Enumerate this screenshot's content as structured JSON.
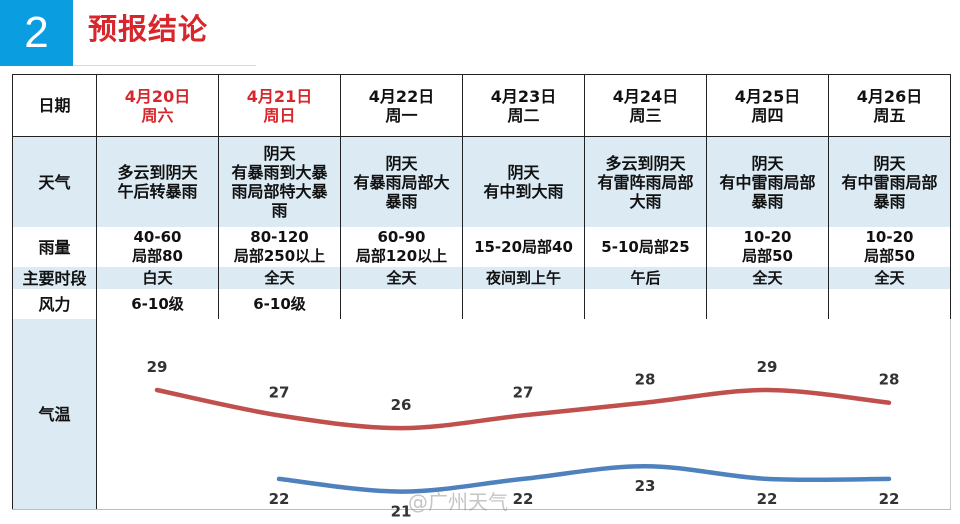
{
  "header": {
    "section_number": "2",
    "title": "预报结论"
  },
  "row_labels": {
    "date": "日期",
    "weather": "天气",
    "rain": "雨量",
    "period": "主要时段",
    "wind": "风力",
    "temp": "气温"
  },
  "days": [
    {
      "date": "4月20日",
      "weekday": "周六",
      "highlight": true,
      "weather": [
        "多云到阴天",
        "午后转暴雨"
      ],
      "rain": [
        "40-60",
        "局部80"
      ],
      "period": "白天",
      "wind": "6-10级"
    },
    {
      "date": "4月21日",
      "weekday": "周日",
      "highlight": true,
      "weather": [
        "阴天",
        "有暴雨到大暴",
        "雨局部特大暴",
        "雨"
      ],
      "rain": [
        "80-120",
        "局部250以上"
      ],
      "period": "全天",
      "wind": "6-10级"
    },
    {
      "date": "4月22日",
      "weekday": "周一",
      "highlight": false,
      "weather": [
        "阴天",
        "有暴雨局部大",
        "暴雨"
      ],
      "rain": [
        "60-90",
        "局部120以上"
      ],
      "period": "全天",
      "wind": ""
    },
    {
      "date": "4月23日",
      "weekday": "周二",
      "highlight": false,
      "weather": [
        "阴天",
        "有中到大雨"
      ],
      "rain": [
        "15-20局部40"
      ],
      "period": "夜间到上午",
      "wind": ""
    },
    {
      "date": "4月24日",
      "weekday": "周三",
      "highlight": false,
      "weather": [
        "多云到阴天",
        "有雷阵雨局部",
        "大雨"
      ],
      "rain": [
        "5-10局部25"
      ],
      "period": "午后",
      "wind": ""
    },
    {
      "date": "4月25日",
      "weekday": "周四",
      "highlight": false,
      "weather": [
        "阴天",
        "有中雷雨局部",
        "暴雨"
      ],
      "rain": [
        "10-20",
        "局部50"
      ],
      "period": "全天",
      "wind": ""
    },
    {
      "date": "4月26日",
      "weekday": "周五",
      "highlight": false,
      "weather": [
        "阴天",
        "有中雷雨局部",
        "暴雨"
      ],
      "rain": [
        "10-20",
        "局部50"
      ],
      "period": "全天",
      "wind": ""
    }
  ],
  "chart_data": {
    "type": "line",
    "categories": [
      "4月20日",
      "4月21日",
      "4月22日",
      "4月23日",
      "4月24日",
      "4月25日",
      "4月26日"
    ],
    "series": [
      {
        "values": [
          29,
          27,
          26,
          27,
          28,
          29,
          28
        ],
        "color": "#c0504d"
      },
      {
        "values": [
          null,
          22,
          21,
          22,
          23,
          22,
          22
        ],
        "color": "#4f81bd"
      }
    ],
    "grid": false,
    "legend": "none"
  },
  "colors": {
    "accent": "#0a9de0",
    "title": "#d7272c",
    "row_band": "#dbeaf3"
  },
  "watermark": "@广州天气"
}
